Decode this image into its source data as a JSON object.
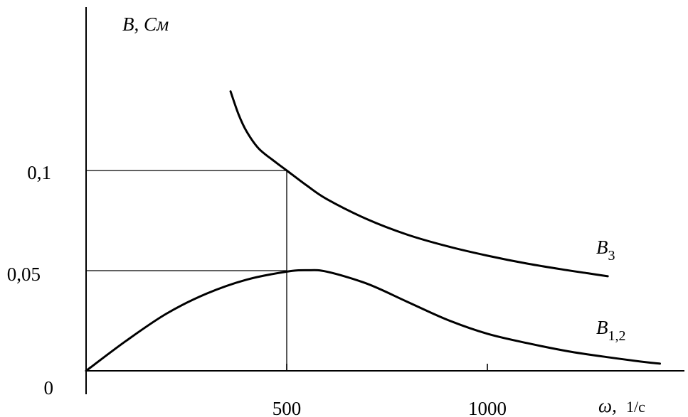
{
  "chart_data": {
    "type": "line",
    "xlabel": "ω,",
    "xunit": "1/с",
    "ylabel": "В, См",
    "xlim": [
      0,
      1430
    ],
    "ylim": [
      0,
      0.14
    ],
    "grid": false,
    "x_ticks": [
      {
        "value": 500,
        "label": "500"
      },
      {
        "value": 1000,
        "label": "1000"
      }
    ],
    "y_ticks": [
      {
        "value": 0,
        "label": "0"
      },
      {
        "value": 0.05,
        "label": "0,05"
      },
      {
        "value": 0.1,
        "label": "0,1"
      }
    ],
    "guide_lines": [
      {
        "x": 500,
        "y": 0.1
      },
      {
        "x": 500,
        "y": 0.05
      }
    ],
    "series": [
      {
        "name": "B3",
        "label_main": "B",
        "label_sub": "3",
        "points": [
          [
            360,
            0.1395
          ],
          [
            380,
            0.128
          ],
          [
            400,
            0.1195
          ],
          [
            430,
            0.111
          ],
          [
            470,
            0.1045
          ],
          [
            500,
            0.1
          ],
          [
            550,
            0.0925
          ],
          [
            600,
            0.0857
          ],
          [
            700,
            0.0757
          ],
          [
            800,
            0.068
          ],
          [
            900,
            0.0622
          ],
          [
            1000,
            0.0575
          ],
          [
            1100,
            0.0535
          ],
          [
            1200,
            0.0502
          ],
          [
            1250,
            0.0487
          ],
          [
            1300,
            0.0472
          ]
        ]
      },
      {
        "name": "B1,2",
        "label_main": "B",
        "label_sub": "1,2",
        "points": [
          [
            0,
            0.0
          ],
          [
            100,
            0.015
          ],
          [
            200,
            0.0285
          ],
          [
            300,
            0.0385
          ],
          [
            400,
            0.0455
          ],
          [
            500,
            0.0495
          ],
          [
            550,
            0.0502
          ],
          [
            600,
            0.0495
          ],
          [
            700,
            0.0435
          ],
          [
            800,
            0.0345
          ],
          [
            900,
            0.0255
          ],
          [
            1000,
            0.0185
          ],
          [
            1100,
            0.0138
          ],
          [
            1200,
            0.0098
          ],
          [
            1300,
            0.0068
          ],
          [
            1400,
            0.0042
          ],
          [
            1430,
            0.0036
          ]
        ]
      }
    ]
  }
}
